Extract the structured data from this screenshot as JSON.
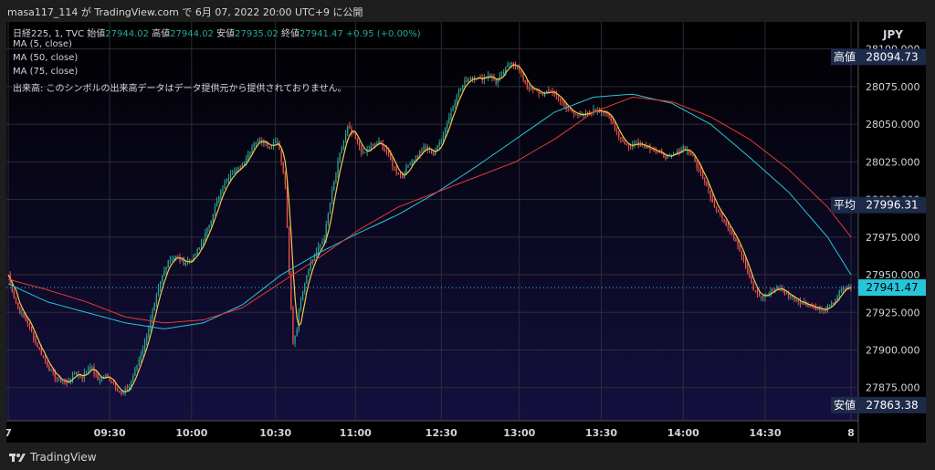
{
  "header": {
    "publish_line": "masa117_114 が TradingView.com で 6月 07, 2022 20:00 UTC+9 に公開"
  },
  "legend": {
    "symbol": "日経225, 1, TVC",
    "open_label": "始値",
    "open_value": "27944.02",
    "high_label": "高値",
    "high_value": "27944.02",
    "low_label": "安値",
    "low_value": "27935.02",
    "close_label": "終値",
    "close_value": "27941.47",
    "change": "+0.95 (+0.00%)",
    "ma5": "MA (5, close)",
    "ma50": "MA (50, close)",
    "ma75": "MA (75, close)",
    "volume_note": "出来高: このシンボルの出来高データはデータ提供元から提供されておりません。"
  },
  "footer": {
    "brand": "TradingView"
  },
  "colors": {
    "background_top": "#000000",
    "background_bottom": "#14103f",
    "up": "#26a69a",
    "down": "#ef5350",
    "ma5": "#f7c948",
    "ma50": "#26c6da",
    "ma75": "#e53935",
    "text": "#d1d4dc",
    "label_box": "#1e2a4a",
    "last_price_box": "#26c6da"
  },
  "chart_data": {
    "type": "candlestick",
    "currency": "JPY",
    "ylim": [
      27853,
      28118
    ],
    "x_ticks": [
      "7",
      "09:30",
      "10:00",
      "10:30",
      "11:00",
      "12:30",
      "13:00",
      "13:30",
      "14:00",
      "14:30",
      "8"
    ],
    "y_ticks": [
      27875,
      27900,
      27925,
      27950,
      27975,
      28000,
      28025,
      28050,
      28075,
      28100
    ],
    "price_labels": [
      {
        "label": "高値",
        "value": "28094.73"
      },
      {
        "label": "平均",
        "value": "27996.31"
      },
      {
        "label": "",
        "value": "27941.47"
      },
      {
        "label": "安値",
        "value": "27863.38"
      }
    ],
    "close_path": [
      [
        0,
        27950
      ],
      [
        3,
        27935
      ],
      [
        6,
        27925
      ],
      [
        10,
        27918
      ],
      [
        14,
        27905
      ],
      [
        18,
        27895
      ],
      [
        22,
        27885
      ],
      [
        26,
        27880
      ],
      [
        30,
        27878
      ],
      [
        34,
        27885
      ],
      [
        38,
        27882
      ],
      [
        42,
        27890
      ],
      [
        46,
        27880
      ],
      [
        50,
        27883
      ],
      [
        54,
        27878
      ],
      [
        58,
        27870
      ],
      [
        62,
        27876
      ],
      [
        66,
        27890
      ],
      [
        70,
        27905
      ],
      [
        74,
        27925
      ],
      [
        78,
        27945
      ],
      [
        82,
        27960
      ],
      [
        86,
        27962
      ],
      [
        90,
        27958
      ],
      [
        94,
        27960
      ],
      [
        98,
        27968
      ],
      [
        102,
        27980
      ],
      [
        106,
        27995
      ],
      [
        110,
        28008
      ],
      [
        114,
        28018
      ],
      [
        118,
        28020
      ],
      [
        122,
        28028
      ],
      [
        126,
        28038
      ],
      [
        130,
        28040
      ],
      [
        134,
        28035
      ],
      [
        138,
        28040
      ],
      [
        142,
        28010
      ],
      [
        144,
        27950
      ],
      [
        146,
        27905
      ],
      [
        148,
        27915
      ],
      [
        150,
        27935
      ],
      [
        154,
        27955
      ],
      [
        158,
        27965
      ],
      [
        162,
        27975
      ],
      [
        166,
        28005
      ],
      [
        170,
        28030
      ],
      [
        174,
        28048
      ],
      [
        178,
        28040
      ],
      [
        182,
        28030
      ],
      [
        186,
        28035
      ],
      [
        190,
        28038
      ],
      [
        194,
        28032
      ],
      [
        198,
        28020
      ],
      [
        202,
        28015
      ],
      [
        206,
        28025
      ],
      [
        210,
        28030
      ],
      [
        214,
        28035
      ],
      [
        218,
        28030
      ],
      [
        222,
        28040
      ],
      [
        226,
        28055
      ],
      [
        230,
        28070
      ],
      [
        234,
        28078
      ],
      [
        238,
        28082
      ],
      [
        242,
        28080
      ],
      [
        246,
        28083
      ],
      [
        250,
        28078
      ],
      [
        254,
        28085
      ],
      [
        258,
        28092
      ],
      [
        262,
        28085
      ],
      [
        266,
        28075
      ],
      [
        270,
        28072
      ],
      [
        274,
        28070
      ],
      [
        278,
        28072
      ],
      [
        282,
        28068
      ],
      [
        286,
        28060
      ],
      [
        290,
        28058
      ],
      [
        294,
        28055
      ],
      [
        298,
        28058
      ],
      [
        302,
        28060
      ],
      [
        306,
        28058
      ],
      [
        310,
        28050
      ],
      [
        314,
        28040
      ],
      [
        318,
        28035
      ],
      [
        322,
        28038
      ],
      [
        326,
        28036
      ],
      [
        330,
        28034
      ],
      [
        334,
        28030
      ],
      [
        338,
        28028
      ],
      [
        342,
        28030
      ],
      [
        346,
        28035
      ],
      [
        350,
        28030
      ],
      [
        354,
        28020
      ],
      [
        358,
        28010
      ],
      [
        362,
        27995
      ],
      [
        366,
        27988
      ],
      [
        370,
        27980
      ],
      [
        374,
        27970
      ],
      [
        378,
        27955
      ],
      [
        382,
        27940
      ],
      [
        386,
        27935
      ],
      [
        390,
        27938
      ],
      [
        394,
        27942
      ],
      [
        398,
        27938
      ],
      [
        402,
        27935
      ],
      [
        406,
        27932
      ],
      [
        410,
        27930
      ],
      [
        414,
        27928
      ],
      [
        418,
        27926
      ],
      [
        422,
        27930
      ],
      [
        426,
        27938
      ],
      [
        430,
        27942
      ],
      [
        432,
        27941.47
      ]
    ],
    "series": [
      {
        "name": "MA (5, close)",
        "ref": "ma5"
      },
      {
        "name": "MA (50, close)",
        "points": [
          [
            0,
            27944
          ],
          [
            20,
            27932
          ],
          [
            40,
            27925
          ],
          [
            60,
            27918
          ],
          [
            80,
            27914
          ],
          [
            100,
            27918
          ],
          [
            120,
            27930
          ],
          [
            140,
            27950
          ],
          [
            160,
            27965
          ],
          [
            180,
            27978
          ],
          [
            200,
            27990
          ],
          [
            220,
            28005
          ],
          [
            240,
            28022
          ],
          [
            260,
            28040
          ],
          [
            280,
            28058
          ],
          [
            300,
            28068
          ],
          [
            320,
            28070
          ],
          [
            340,
            28064
          ],
          [
            360,
            28050
          ],
          [
            380,
            28028
          ],
          [
            400,
            28005
          ],
          [
            420,
            27975
          ],
          [
            432,
            27950
          ]
        ]
      },
      {
        "name": "MA (75, close)",
        "points": [
          [
            0,
            27947
          ],
          [
            20,
            27940
          ],
          [
            40,
            27932
          ],
          [
            60,
            27922
          ],
          [
            80,
            27918
          ],
          [
            100,
            27920
          ],
          [
            120,
            27928
          ],
          [
            140,
            27945
          ],
          [
            160,
            27962
          ],
          [
            180,
            27980
          ],
          [
            200,
            27995
          ],
          [
            220,
            28005
          ],
          [
            240,
            28015
          ],
          [
            260,
            28025
          ],
          [
            280,
            28040
          ],
          [
            300,
            28058
          ],
          [
            320,
            28068
          ],
          [
            340,
            28065
          ],
          [
            360,
            28055
          ],
          [
            380,
            28040
          ],
          [
            400,
            28020
          ],
          [
            420,
            27995
          ],
          [
            432,
            27975
          ]
        ]
      }
    ]
  }
}
